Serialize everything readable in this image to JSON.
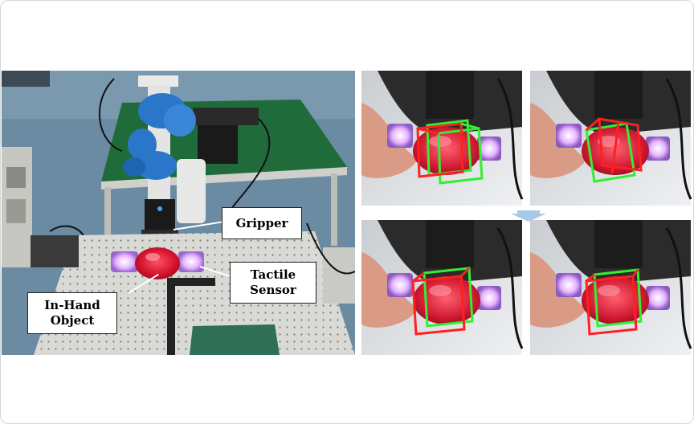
{
  "labels": {
    "gripper": "Gripper",
    "tactile_sensor": "Tactile\nSensor",
    "in_hand_object": "In-Hand\nObject"
  },
  "colors": {
    "prediction_box": "#ff2020",
    "ground_truth_box": "#33ee33",
    "arrow": "#a8c8e8",
    "floor": "#6d8ea6",
    "table": "#1f6b3a",
    "robot_arm": "#2a76c9",
    "object": "#e0203a"
  },
  "icons": [
    "down-arrow-icon"
  ]
}
